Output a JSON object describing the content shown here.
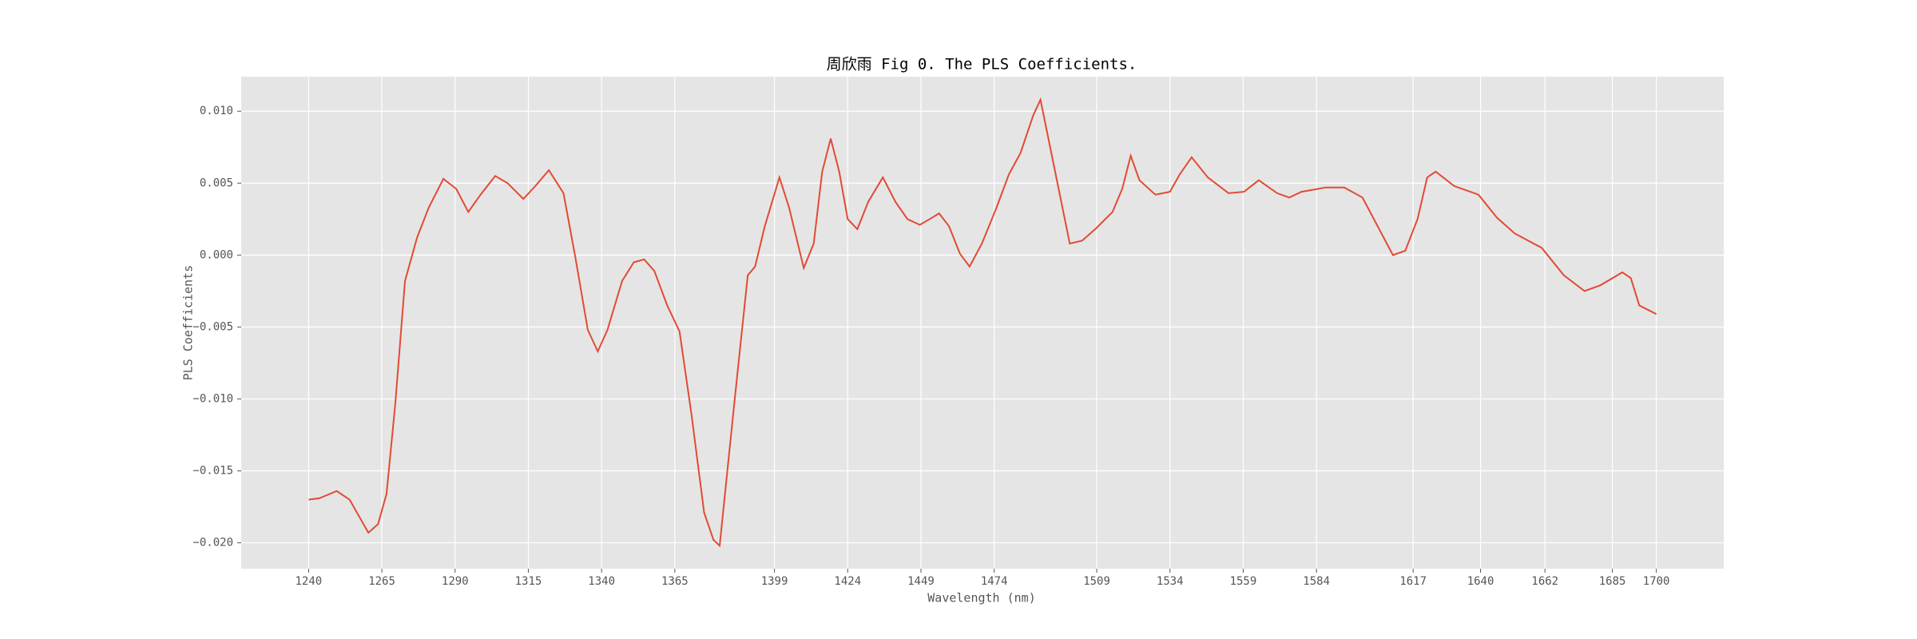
{
  "chart_data": {
    "type": "line",
    "title": "周欣雨 Fig 0. The PLS Coefficients.",
    "x_label": "Wavelength (nm)",
    "y_label": "PLS Coefficients",
    "x": [
      1240,
      1243.7,
      1249.6,
      1254,
      1260.4,
      1263.7,
      1266.6,
      1269.6,
      1272.9,
      1277,
      1281,
      1286,
      1290.4,
      1294.5,
      1298.7,
      1303.7,
      1307.9,
      1313.3,
      1317.4,
      1322,
      1327,
      1331,
      1335.3,
      1338.7,
      1342,
      1347,
      1351,
      1354.5,
      1358,
      1362.4,
      1366.6,
      1370.7,
      1375,
      1378.2,
      1380.3,
      1385.3,
      1389.9,
      1392.4,
      1395.7,
      1400.7,
      1404,
      1409,
      1412.4,
      1415.3,
      1418.2,
      1421.1,
      1424,
      1427.3,
      1431,
      1436,
      1440.3,
      1444.4,
      1448.6,
      1452,
      1455.2,
      1458.6,
      1462.3,
      1465.6,
      1469.8,
      1474.8,
      1479,
      1483,
      1487.3,
      1489.8,
      1494.8,
      1499.8,
      1504,
      1509,
      1514.4,
      1517.7,
      1520.6,
      1523.6,
      1529,
      1534,
      1537.3,
      1541.4,
      1546.9,
      1554,
      1559.3,
      1564.3,
      1570.6,
      1574.7,
      1578.9,
      1587.2,
      1593.5,
      1599.7,
      1610.1,
      1614.3,
      1618.5,
      1621.8,
      1624.7,
      1631,
      1639.3,
      1645.6,
      1651.7,
      1660.9,
      1668.4,
      1675.5,
      1680.9,
      1688.4,
      1691.3,
      1694.2,
      1700
    ],
    "series": [
      {
        "name": "PLS Coefficients",
        "color": "#e24a33",
        "values": [
          -0.017,
          -0.0169,
          -0.0164,
          -0.017,
          -0.0193,
          -0.0187,
          -0.0166,
          -0.0103,
          -0.0018,
          0.0012,
          0.0033,
          0.0053,
          0.0046,
          0.003,
          0.0042,
          0.0055,
          0.005,
          0.0039,
          0.0048,
          0.0059,
          0.0043,
          -0.0001,
          -0.0052,
          -0.0067,
          -0.0052,
          -0.0018,
          -0.0005,
          -0.0003,
          -0.0011,
          -0.0035,
          -0.0053,
          -0.0111,
          -0.0179,
          -0.0198,
          -0.0202,
          -0.0103,
          -0.0014,
          -0.0008,
          0.002,
          0.0054,
          0.0033,
          -0.0009,
          0.0008,
          0.0058,
          0.0081,
          0.0058,
          0.0025,
          0.0018,
          0.0037,
          0.0054,
          0.0037,
          0.0025,
          0.0021,
          0.0025,
          0.0029,
          0.002,
          0.0001,
          -0.0008,
          0.0008,
          0.0033,
          0.0056,
          0.0071,
          0.0097,
          0.0108,
          0.0058,
          0.0008,
          0.001,
          0.0019,
          0.003,
          0.0046,
          0.0069,
          0.0052,
          0.0042,
          0.0044,
          0.0056,
          0.0068,
          0.0054,
          0.0043,
          0.0044,
          0.0052,
          0.0043,
          0.004,
          0.0044,
          0.0047,
          0.0047,
          0.004,
          0.0,
          0.0003,
          0.0025,
          0.0054,
          0.0058,
          0.0048,
          0.0042,
          0.0026,
          0.0015,
          0.0005,
          -0.0014,
          -0.0025,
          -0.0021,
          -0.0012,
          -0.0016,
          -0.0035,
          -0.0041
        ]
      }
    ],
    "xlim": [
      1217,
      1723
    ],
    "xticks": [
      1240,
      1265,
      1290,
      1315,
      1340,
      1365,
      1399,
      1424,
      1449,
      1474,
      1509,
      1534,
      1559,
      1584,
      1617,
      1640,
      1662,
      1685,
      1700
    ],
    "ylim": [
      -0.0218,
      0.0124
    ],
    "yticks": [
      {
        "value": -0.02,
        "label": "−0.020"
      },
      {
        "value": -0.015,
        "label": "−0.015"
      },
      {
        "value": -0.01,
        "label": "−0.010"
      },
      {
        "value": -0.005,
        "label": "−0.005"
      },
      {
        "value": 0,
        "label": "0.000"
      },
      {
        "value": 0.005,
        "label": "0.005"
      },
      {
        "value": 0.01,
        "label": "0.010"
      }
    ],
    "grid": true
  }
}
